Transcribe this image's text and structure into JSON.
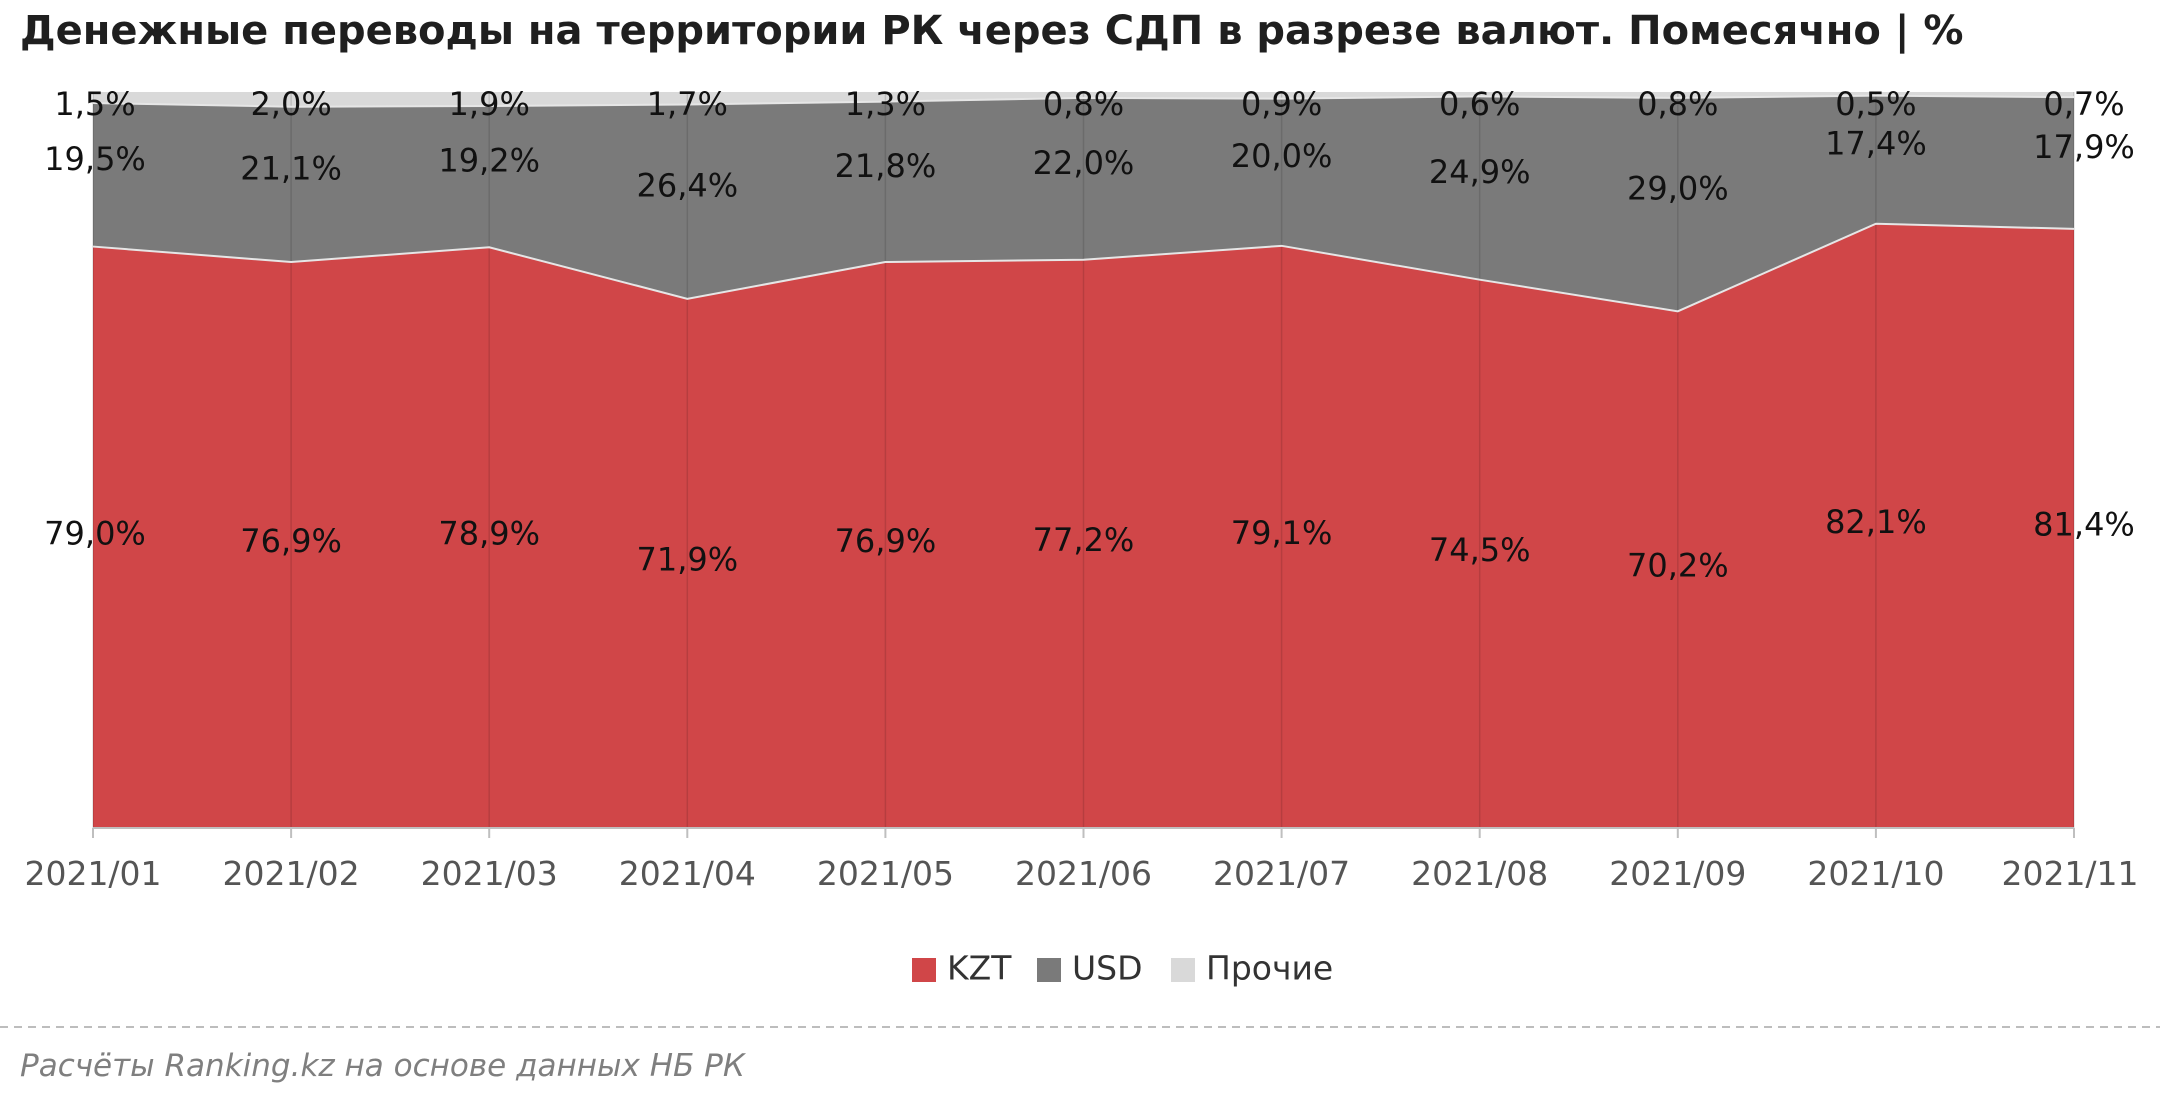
{
  "chart_data": {
    "type": "area",
    "stacked": true,
    "percent_stacked": true,
    "title": "Денежные переводы на территории РК через СДП в разрезе валют. Помесячно | %",
    "categories": [
      "2021/01",
      "2021/02",
      "2021/03",
      "2021/04",
      "2021/05",
      "2021/06",
      "2021/07",
      "2021/08",
      "2021/09",
      "2021/10",
      "2021/11"
    ],
    "series": [
      {
        "name": "KZT",
        "color": "#d04648",
        "values": [
          79.0,
          76.9,
          78.9,
          71.9,
          76.9,
          77.2,
          79.1,
          74.5,
          70.2,
          82.1,
          81.4
        ],
        "labels": [
          "79,0%",
          "76,9%",
          "78,9%",
          "71,9%",
          "76,9%",
          "77,2%",
          "79,1%",
          "74,5%",
          "70,2%",
          "82,1%",
          "81,4%"
        ]
      },
      {
        "name": "USD",
        "color": "#7a7a7a",
        "values": [
          19.5,
          21.1,
          19.2,
          26.4,
          21.8,
          22.0,
          20.0,
          24.9,
          29.0,
          17.4,
          17.9
        ],
        "labels": [
          "19,5%",
          "21,1%",
          "19,2%",
          "26,4%",
          "21,8%",
          "22,0%",
          "20,0%",
          "24,9%",
          "29,0%",
          "17,4%",
          "17,9%"
        ]
      },
      {
        "name": "Прочие",
        "color": "#d9d9d9",
        "values": [
          1.5,
          2.0,
          1.9,
          1.7,
          1.3,
          0.8,
          0.9,
          0.6,
          0.8,
          0.5,
          0.7
        ],
        "labels": [
          "1,5%",
          "2,0%",
          "1,9%",
          "1,7%",
          "1,3%",
          "0,8%",
          "0,9%",
          "0,6%",
          "0,8%",
          "0,5%",
          "0,7%"
        ]
      }
    ],
    "ylim": [
      0,
      100
    ],
    "grid": true,
    "legend_position": "bottom",
    "xlabel": "",
    "ylabel": ""
  },
  "source_note": "Расчёты Ranking.kz на основе данных НБ РК"
}
